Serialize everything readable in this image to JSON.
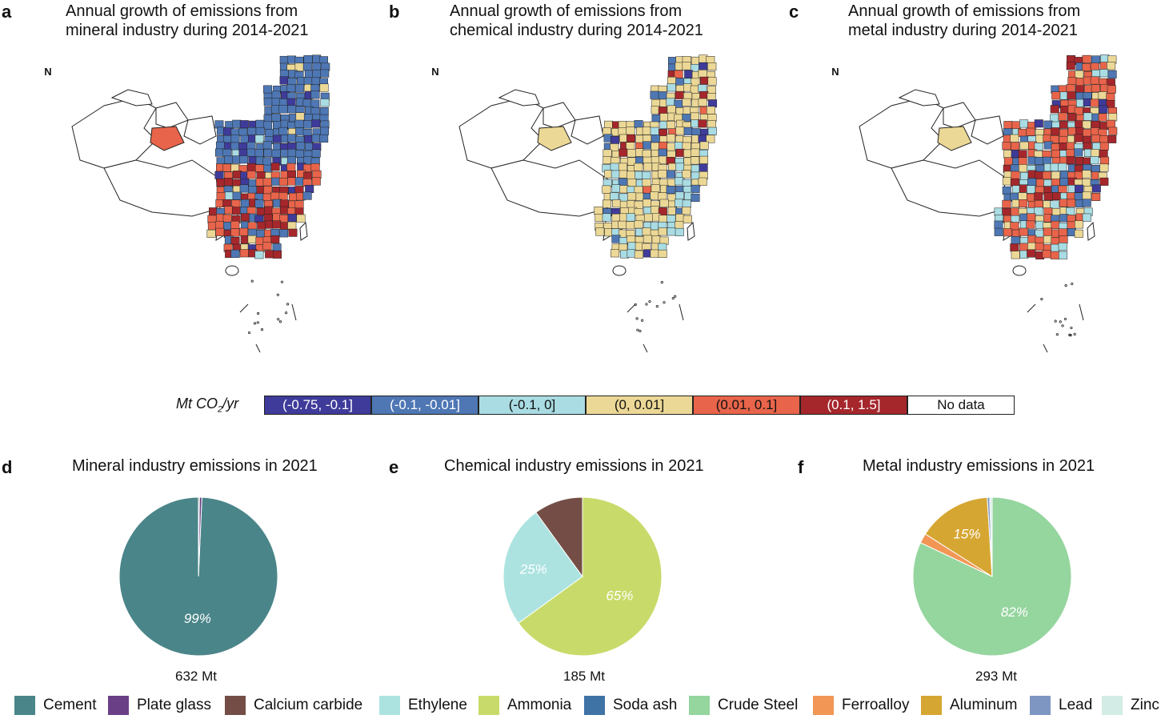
{
  "maps": [
    {
      "letter": "a",
      "title_line1": "Annual growth of emissions from",
      "title_line2": "mineral industry during 2014-2021",
      "north": "N",
      "scheme": "mineral"
    },
    {
      "letter": "b",
      "title_line1": "Annual growth of emissions from",
      "title_line2": "chemical industry during 2014-2021",
      "north": "N",
      "scheme": "chemical"
    },
    {
      "letter": "c",
      "title_line1": "Annual growth of emissions from",
      "title_line2": "metal industry during 2014-2021",
      "north": "N",
      "scheme": "metal"
    }
  ],
  "colorbar": {
    "unit": "Mt CO",
    "unit_sub": "2",
    "unit_suffix": "/yr",
    "bins": [
      {
        "label": "(-0.75, -0.1]",
        "color": "#3f3b9a",
        "text_color": "#ffffff"
      },
      {
        "label": "(-0.1, -0.01]",
        "color": "#4e77b4",
        "text_color": "#ffffff"
      },
      {
        "label": "(-0.1, 0]",
        "color": "#a9dce3",
        "text_color": "#111111"
      },
      {
        "label": "(0, 0.01]",
        "color": "#ecd896",
        "text_color": "#111111"
      },
      {
        "label": "(0.01, 0.1]",
        "color": "#e8644a",
        "text_color": "#111111"
      },
      {
        "label": "(0.1, 1.5]",
        "color": "#a5272c",
        "text_color": "#ffffff"
      },
      {
        "label": "No data",
        "color": "#ffffff",
        "text_color": "#111111"
      }
    ]
  },
  "chart_data": [
    {
      "type": "pie",
      "letter": "d",
      "title": "Mineral industry emissions in 2021",
      "total": "632 Mt",
      "slices": [
        {
          "category": "Cement",
          "value": 99.3,
          "label": "99%"
        },
        {
          "category": "Plate glass",
          "value": 0.5,
          "label": ""
        },
        {
          "category": "Calcium carbide",
          "value": 0.2,
          "label": ""
        }
      ]
    },
    {
      "type": "pie",
      "letter": "e",
      "title": "Chemical industry emissions in 2021",
      "total": "185 Mt",
      "slices": [
        {
          "category": "Ammonia",
          "value": 65,
          "label": "65%"
        },
        {
          "category": "Ethylene",
          "value": 25,
          "label": "25%"
        },
        {
          "category": "Calcium carbide",
          "value": 10,
          "label": ""
        }
      ]
    },
    {
      "type": "pie",
      "letter": "f",
      "title": "Metal industry emissions in 2021",
      "total": "293 Mt",
      "slices": [
        {
          "category": "Crude Steel",
          "value": 82,
          "label": "82%"
        },
        {
          "category": "Ferroalloy",
          "value": 2,
          "label": ""
        },
        {
          "category": "Aluminum",
          "value": 15,
          "label": "15%"
        },
        {
          "category": "Lead",
          "value": 0.5,
          "label": ""
        },
        {
          "category": "Zinc",
          "value": 0.5,
          "label": ""
        }
      ]
    }
  ],
  "legend": [
    {
      "label": "Cement",
      "color": "#4a8589"
    },
    {
      "label": "Plate glass",
      "color": "#6b3f86"
    },
    {
      "label": "Calcium carbide",
      "color": "#744e46"
    },
    {
      "label": "Ethylene",
      "color": "#ace3e0"
    },
    {
      "label": "Ammonia",
      "color": "#c8db6a"
    },
    {
      "label": "Soda ash",
      "color": "#3f73a6"
    },
    {
      "label": "Crude Steel",
      "color": "#95d59e"
    },
    {
      "label": "Ferroalloy",
      "color": "#f29655"
    },
    {
      "label": "Aluminum",
      "color": "#d6a632"
    },
    {
      "label": "Lead",
      "color": "#7e96c2"
    },
    {
      "label": "Zinc",
      "color": "#d3ece6"
    }
  ]
}
